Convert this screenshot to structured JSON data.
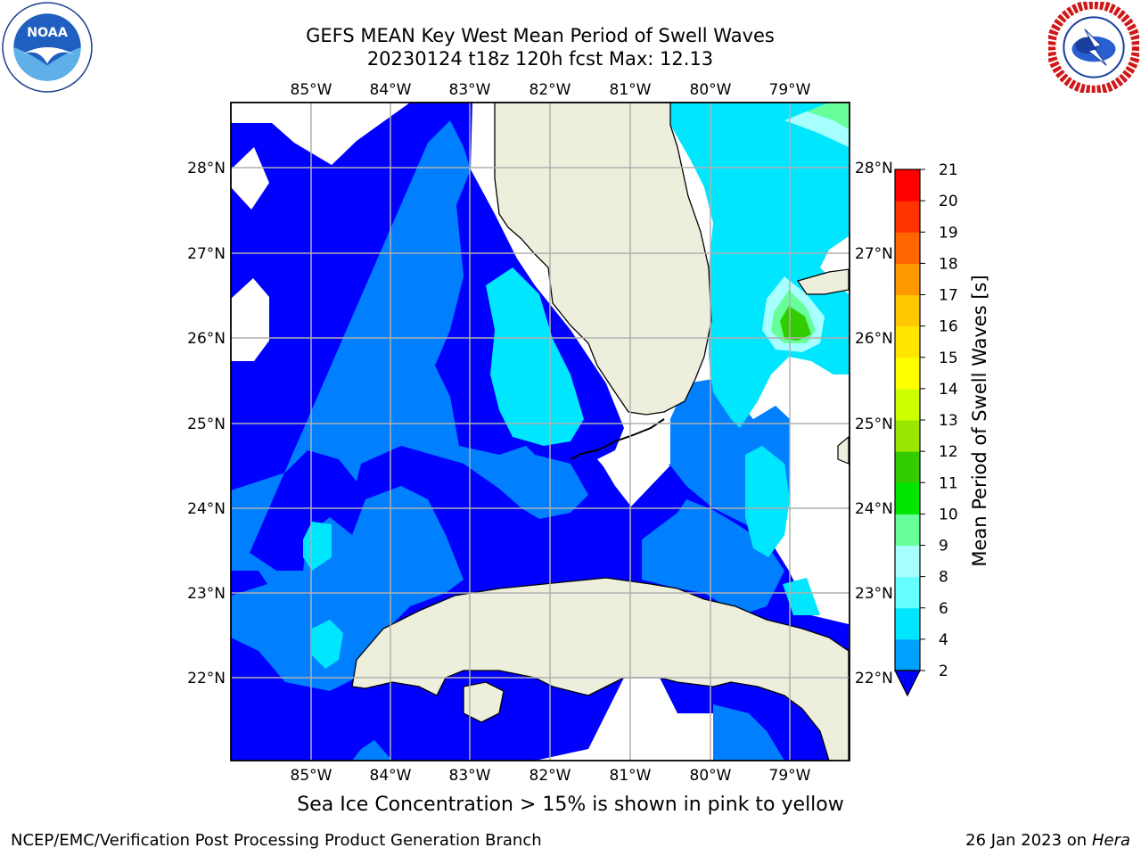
{
  "title_line1": "GEFS MEAN Key West Mean Period of Swell Waves",
  "title_line2": "20230124 t18z 120h fcst   Max: 12.13",
  "lon_labels": [
    "85°W",
    "84°W",
    "83°W",
    "82°W",
    "81°W",
    "80°W",
    "79°W"
  ],
  "lat_labels": [
    "28°N",
    "27°N",
    "26°N",
    "25°N",
    "24°N",
    "23°N",
    "22°N"
  ],
  "colorbar": {
    "title": "Mean Period of Swell Waves [s]",
    "ticks": [
      "2",
      "4",
      "6",
      "8",
      "9",
      "10",
      "11",
      "12",
      "13",
      "14",
      "15",
      "16",
      "17",
      "18",
      "19",
      "20",
      "21"
    ],
    "colors": [
      "#0050ff",
      "#00a0ff",
      "#00e6ff",
      "#66ffff",
      "#a8ffff",
      "#66ff99",
      "#00e600",
      "#33cc00",
      "#99e600",
      "#ccff00",
      "#ffff00",
      "#ffe600",
      "#ffc800",
      "#ff9900",
      "#ff6600",
      "#ff3300",
      "#ff0000"
    ]
  },
  "colors": {
    "land": "#eeeedd",
    "ocean_low": "#0000ff",
    "ocean_mid": "#0080ff",
    "ocean_cyan": "#00e6ff",
    "grid": "#b0b0b0"
  },
  "footer_note": "Sea Ice Concentration > 15% is shown in pink to yellow",
  "footer_left": "NCEP/EMC/Verification Post Processing Product Generation Branch",
  "footer_right_date": "26 Jan 2023 on",
  "footer_right_host": "Hera",
  "logos": {
    "left": "noaa-logo",
    "right": "nws-logo"
  }
}
